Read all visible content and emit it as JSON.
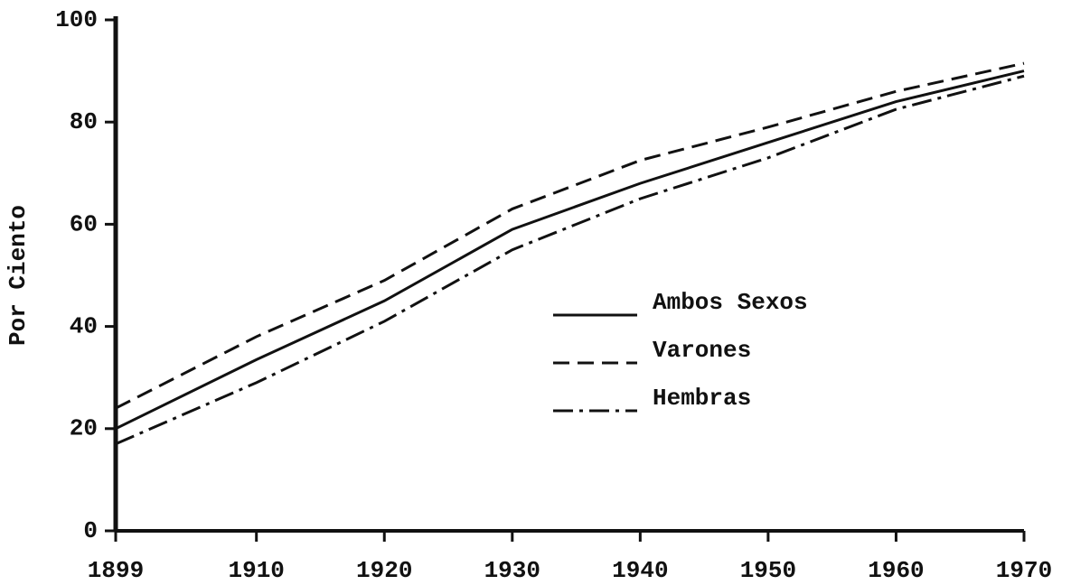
{
  "chart_data": {
    "type": "line",
    "ylabel": "Por Ciento",
    "x": [
      1899,
      1910,
      1920,
      1930,
      1940,
      1950,
      1960,
      1970
    ],
    "series": [
      {
        "name": "Ambos Sexos",
        "color": "#111111",
        "dash": "solid",
        "values": [
          20,
          33.5,
          45,
          59,
          68,
          76,
          84,
          90
        ]
      },
      {
        "name": "Varones",
        "color": "#111111",
        "dash": "dashed",
        "values": [
          24,
          38,
          49,
          63,
          72.5,
          79,
          86,
          91.5
        ]
      },
      {
        "name": "Hembras",
        "color": "#111111",
        "dash": "dashdot",
        "values": [
          17,
          29,
          41,
          55,
          65,
          73,
          82.5,
          89
        ]
      }
    ],
    "xlim": [
      1899,
      1970
    ],
    "xticks": [
      1899,
      1910,
      1920,
      1930,
      1940,
      1950,
      1960,
      1970
    ],
    "ylim": [
      0,
      100
    ],
    "yticks": [
      0,
      20,
      40,
      60,
      80,
      100
    ],
    "grid": false,
    "legend": "center right"
  }
}
